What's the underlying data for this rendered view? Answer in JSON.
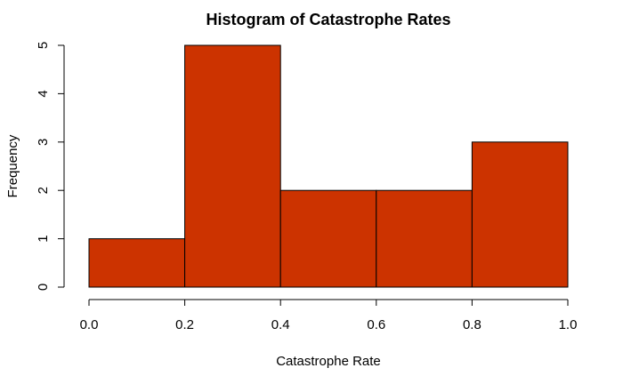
{
  "chart_data": {
    "type": "bar",
    "title": "Histogram of Catastrophe Rates",
    "xlabel": "Catastrophe Rate",
    "ylabel": "Frequency",
    "bins": [
      {
        "start": 0.0,
        "end": 0.2,
        "count": 1
      },
      {
        "start": 0.2,
        "end": 0.4,
        "count": 5
      },
      {
        "start": 0.4,
        "end": 0.6,
        "count": 2
      },
      {
        "start": 0.6,
        "end": 0.8,
        "count": 2
      },
      {
        "start": 0.8,
        "end": 1.0,
        "count": 3
      }
    ],
    "xlim": [
      0.0,
      1.0
    ],
    "ylim": [
      0,
      5
    ],
    "xticks": [
      "0.0",
      "0.2",
      "0.4",
      "0.6",
      "0.8",
      "1.0"
    ],
    "yticks": [
      "0",
      "1",
      "2",
      "3",
      "4",
      "5"
    ],
    "bar_color": "#CC3300",
    "grid": false,
    "legend": "none"
  }
}
